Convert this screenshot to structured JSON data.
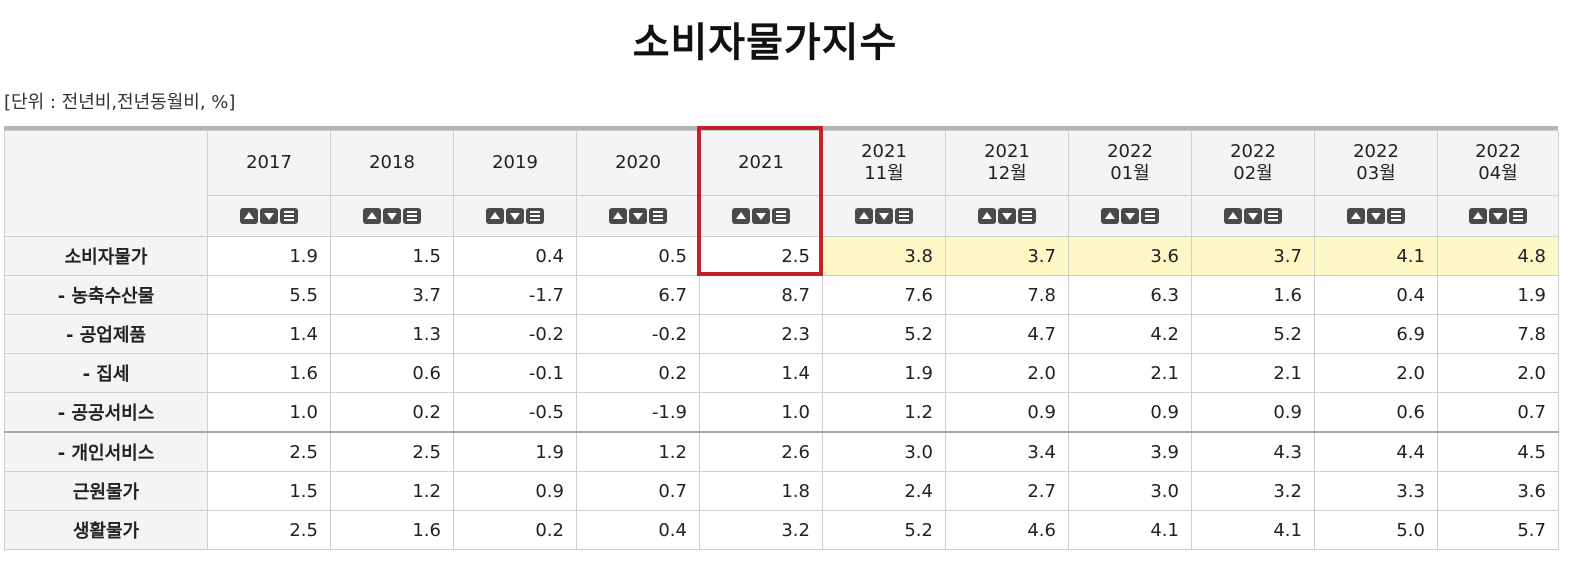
{
  "title": "소비자물가지수",
  "unit": "[단위 : 전년비,전년동월비, %]",
  "columns": [
    {
      "line1": "2017",
      "line2": ""
    },
    {
      "line1": "2018",
      "line2": ""
    },
    {
      "line1": "2019",
      "line2": ""
    },
    {
      "line1": "2020",
      "line2": ""
    },
    {
      "line1": "2021",
      "line2": ""
    },
    {
      "line1": "2021",
      "line2": "11월"
    },
    {
      "line1": "2021",
      "line2": "12월"
    },
    {
      "line1": "2022",
      "line2": "01월"
    },
    {
      "line1": "2022",
      "line2": "02월"
    },
    {
      "line1": "2022",
      "line2": "03월"
    },
    {
      "line1": "2022",
      "line2": "04월"
    }
  ],
  "highlight_color": "#fdf8c6",
  "focus_color": "#c8202a",
  "sort_icons": [
    "sort-asc-icon",
    "sort-desc-icon",
    "menu-icon"
  ],
  "rows": [
    {
      "label": "소비자물가",
      "values": [
        "1.9",
        "1.5",
        "0.4",
        "0.5",
        "2.5",
        "3.8",
        "3.7",
        "3.6",
        "3.7",
        "4.1",
        "4.8"
      ]
    },
    {
      "label": "- 농축수산물",
      "values": [
        "5.5",
        "3.7",
        "-1.7",
        "6.7",
        "8.7",
        "7.6",
        "7.8",
        "6.3",
        "1.6",
        "0.4",
        "1.9"
      ]
    },
    {
      "label": "- 공업제품",
      "values": [
        "1.4",
        "1.3",
        "-0.2",
        "-0.2",
        "2.3",
        "5.2",
        "4.7",
        "4.2",
        "5.2",
        "6.9",
        "7.8"
      ]
    },
    {
      "label": "- 집세",
      "values": [
        "1.6",
        "0.6",
        "-0.1",
        "0.2",
        "1.4",
        "1.9",
        "2.0",
        "2.1",
        "2.1",
        "2.0",
        "2.0"
      ]
    },
    {
      "label": "- 공공서비스",
      "values": [
        "1.0",
        "0.2",
        "-0.5",
        "-1.9",
        "1.0",
        "1.2",
        "0.9",
        "0.9",
        "0.9",
        "0.6",
        "0.7"
      ]
    },
    {
      "label": "- 개인서비스",
      "values": [
        "2.5",
        "2.5",
        "1.9",
        "1.2",
        "2.6",
        "3.0",
        "3.4",
        "3.9",
        "4.3",
        "4.4",
        "4.5"
      ]
    },
    {
      "label": "근원물가",
      "values": [
        "1.5",
        "1.2",
        "0.9",
        "0.7",
        "1.8",
        "2.4",
        "2.7",
        "3.0",
        "3.2",
        "3.3",
        "3.6"
      ]
    },
    {
      "label": "생활물가",
      "values": [
        "2.5",
        "1.6",
        "0.2",
        "0.4",
        "3.2",
        "5.2",
        "4.6",
        "4.1",
        "4.1",
        "5.0",
        "5.7"
      ]
    }
  ]
}
